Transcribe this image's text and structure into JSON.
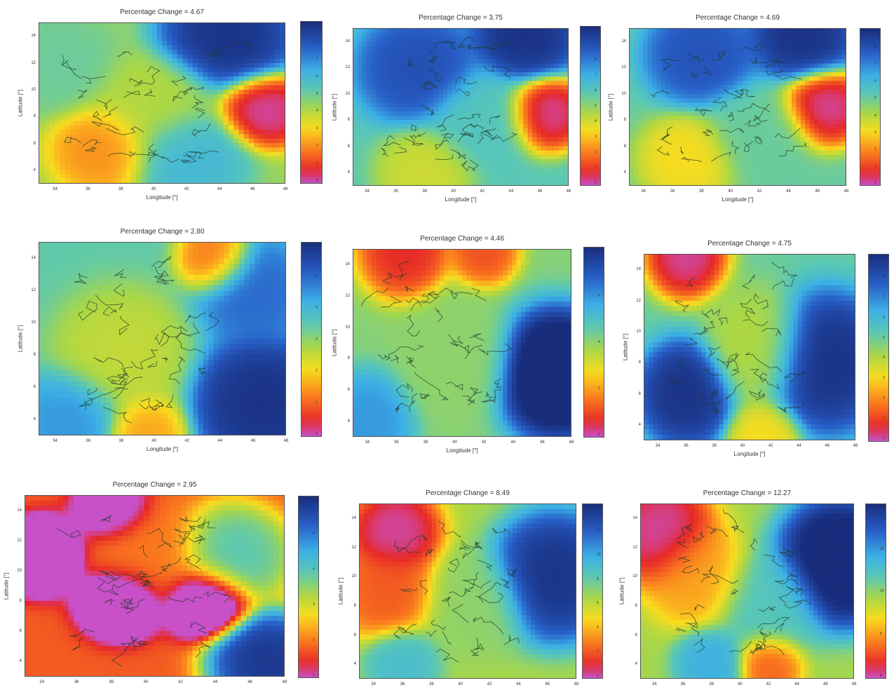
{
  "chart_data": [
    {
      "type": "heatmap",
      "title": "Percentage Change = 4.67",
      "xlabel": "Longitude [°]",
      "ylabel": "Latitude [°]",
      "x_ticks": [
        "34",
        "36",
        "38",
        "40",
        "42",
        "44",
        "46",
        "48"
      ],
      "y_ticks": [
        "4",
        "6",
        "8",
        "10",
        "12",
        "14"
      ],
      "colorbar_ticks": [
        "0",
        "1",
        "2",
        "3",
        "4",
        "5",
        "6",
        "7",
        "8",
        "9"
      ],
      "blobs": [
        {
          "x": 46.8,
          "y": 8.5,
          "v": 0,
          "r": 2.2
        },
        {
          "x": 37,
          "y": 5.5,
          "v": 2,
          "r": 2.6
        },
        {
          "x": 44.5,
          "y": 14,
          "v": 9,
          "r": 3.2
        },
        {
          "x": 40,
          "y": 9,
          "v": 4,
          "r": 3.0
        },
        {
          "x": 34,
          "y": 12,
          "v": 5,
          "r": 3.0
        },
        {
          "x": 42,
          "y": 5,
          "v": 6,
          "r": 3.0
        }
      ]
    },
    {
      "type": "heatmap",
      "title": "Percentage Change = 3.75",
      "xlabel": "Longitude [°]",
      "ylabel": "Latitude [°]",
      "x_ticks": [
        "34",
        "36",
        "38",
        "40",
        "42",
        "44",
        "46",
        "48"
      ],
      "y_ticks": [
        "4",
        "6",
        "8",
        "10",
        "12",
        "14"
      ],
      "colorbar_ticks": [
        "0",
        "1",
        "2",
        "3",
        "4",
        "5",
        "6",
        "7",
        "8",
        "9",
        "10"
      ],
      "blobs": [
        {
          "x": 46.5,
          "y": 8.5,
          "v": 0,
          "r": 2.2
        },
        {
          "x": 37.5,
          "y": 12,
          "v": 9,
          "r": 3.2
        },
        {
          "x": 45,
          "y": 14.5,
          "v": 10,
          "r": 2.8
        },
        {
          "x": 38,
          "y": 4,
          "v": 4,
          "r": 2.6
        },
        {
          "x": 42,
          "y": 8,
          "v": 6,
          "r": 3.0
        }
      ]
    },
    {
      "type": "heatmap",
      "title": "Percentage Change = 4.69",
      "xlabel": "Longitude [°]",
      "ylabel": "Latitude [°]",
      "x_ticks": [
        "34",
        "36",
        "38",
        "40",
        "42",
        "44",
        "46",
        "48"
      ],
      "y_ticks": [
        "4",
        "6",
        "8",
        "10",
        "12",
        "14"
      ],
      "colorbar_ticks": [
        "0",
        "1",
        "2",
        "3",
        "4",
        "5",
        "6",
        "7",
        "8",
        "9"
      ],
      "blobs": [
        {
          "x": 46.5,
          "y": 9,
          "v": 0,
          "r": 2.3
        },
        {
          "x": 38,
          "y": 13,
          "v": 8,
          "r": 3.0
        },
        {
          "x": 45,
          "y": 14.5,
          "v": 9,
          "r": 2.8
        },
        {
          "x": 37,
          "y": 5,
          "v": 3,
          "r": 2.6
        },
        {
          "x": 42,
          "y": 7,
          "v": 5,
          "r": 3.0
        }
      ]
    },
    {
      "type": "heatmap",
      "title": "Percentage Change = 2.80",
      "xlabel": "Longitude [°]",
      "ylabel": "Latitude [°]",
      "x_ticks": [
        "34",
        "36",
        "38",
        "40",
        "42",
        "44",
        "46",
        "48"
      ],
      "y_ticks": [
        "4",
        "6",
        "8",
        "10",
        "12",
        "14"
      ],
      "colorbar_ticks": [
        "0",
        "1",
        "2",
        "3",
        "4",
        "5",
        "6"
      ],
      "blobs": [
        {
          "x": 43.8,
          "y": 14,
          "v": 1,
          "r": 1.8
        },
        {
          "x": 39.5,
          "y": 3,
          "v": 1.5,
          "r": 2.0
        },
        {
          "x": 46.5,
          "y": 5,
          "v": 6,
          "r": 3.2
        },
        {
          "x": 38,
          "y": 8,
          "v": 2.5,
          "r": 3.2
        },
        {
          "x": 35,
          "y": 4,
          "v": 4.5,
          "r": 2.4
        },
        {
          "x": 46,
          "y": 12,
          "v": 5,
          "r": 2.6
        }
      ]
    },
    {
      "type": "heatmap",
      "title": "Percentage Change = 4.46",
      "xlabel": "Longitude [°]",
      "ylabel": "Latitude [°]",
      "x_ticks": [
        "34",
        "36",
        "38",
        "40",
        "42",
        "44",
        "46",
        "48"
      ],
      "y_ticks": [
        "4",
        "6",
        "8",
        "10",
        "12",
        "14"
      ],
      "colorbar_ticks": [
        "0",
        "2",
        "4",
        "6",
        "8"
      ],
      "blobs": [
        {
          "x": 36.5,
          "y": 15,
          "v": 0.5,
          "r": 2.4
        },
        {
          "x": 42,
          "y": 15,
          "v": 1,
          "r": 1.8
        },
        {
          "x": 47,
          "y": 7,
          "v": 9,
          "r": 3.2
        },
        {
          "x": 40,
          "y": 8,
          "v": 4,
          "r": 3.2
        },
        {
          "x": 34,
          "y": 4,
          "v": 6,
          "r": 2.4
        }
      ]
    },
    {
      "type": "heatmap",
      "title": "Percentage Change = 4.75",
      "xlabel": "Longitude [°]",
      "ylabel": "Latitude [°]",
      "x_ticks": [
        "34",
        "36",
        "38",
        "40",
        "42",
        "44",
        "46",
        "48"
      ],
      "y_ticks": [
        "4",
        "6",
        "8",
        "10",
        "12",
        "14"
      ],
      "colorbar_ticks": [
        "0",
        "1",
        "2",
        "3",
        "4",
        "5",
        "6",
        "7",
        "8",
        "9"
      ],
      "blobs": [
        {
          "x": 36,
          "y": 15,
          "v": 0,
          "r": 2.2
        },
        {
          "x": 36,
          "y": 6,
          "v": 9,
          "r": 2.6
        },
        {
          "x": 46,
          "y": 8,
          "v": 9,
          "r": 3.4
        },
        {
          "x": 41,
          "y": 9,
          "v": 4,
          "r": 3.0
        },
        {
          "x": 41.5,
          "y": 3,
          "v": 3,
          "r": 2.0
        }
      ]
    },
    {
      "type": "heatmap",
      "title": "Percentage Change = 2.95",
      "xlabel": "",
      "ylabel": "Latitude [°]",
      "x_ticks": [
        "34",
        "36",
        "38",
        "40",
        "42",
        "44",
        "46",
        "48"
      ],
      "y_ticks": [
        "4",
        "6",
        "8",
        "10",
        "12",
        "14"
      ],
      "colorbar_ticks": [
        "1",
        "2",
        "3",
        "4",
        "5",
        "6"
      ],
      "blobs": [
        {
          "x": 34,
          "y": 11,
          "v": 0,
          "r": 2.0
        },
        {
          "x": 38.5,
          "y": 8,
          "v": 0,
          "r": 2.0
        },
        {
          "x": 43.5,
          "y": 8,
          "v": 0,
          "r": 2.0
        },
        {
          "x": 38,
          "y": 14,
          "v": 0.5,
          "r": 1.8
        },
        {
          "x": 47,
          "y": 4,
          "v": 6,
          "r": 2.6
        },
        {
          "x": 40,
          "y": 11,
          "v": 2,
          "r": 3.0
        },
        {
          "x": 45,
          "y": 11,
          "v": 4,
          "r": 2.6
        }
      ]
    },
    {
      "type": "heatmap",
      "title": "Percentage Change = 8.49",
      "xlabel": "",
      "ylabel": "Latitude [°]",
      "x_ticks": [
        "34",
        "36",
        "38",
        "40",
        "42",
        "44",
        "46",
        "48"
      ],
      "y_ticks": [
        "4",
        "6",
        "8",
        "10",
        "12",
        "14"
      ],
      "colorbar_ticks": [
        "0",
        "2",
        "4",
        "6",
        "8",
        "10",
        "12",
        "14"
      ],
      "blobs": [
        {
          "x": 35.5,
          "y": 13,
          "v": 0,
          "r": 2.4
        },
        {
          "x": 35,
          "y": 9,
          "v": 2,
          "r": 2.6
        },
        {
          "x": 46.5,
          "y": 10,
          "v": 14,
          "r": 3.4
        },
        {
          "x": 41,
          "y": 8,
          "v": 7,
          "r": 3.0
        },
        {
          "x": 36,
          "y": 4,
          "v": 9,
          "r": 2.0
        }
      ]
    },
    {
      "type": "heatmap",
      "title": "Percentage Change = 12.27",
      "xlabel": "",
      "ylabel": "Latitude [°]",
      "x_ticks": [
        "34",
        "36",
        "38",
        "40",
        "42",
        "44",
        "46",
        "48"
      ],
      "y_ticks": [
        "4",
        "6",
        "8",
        "10",
        "12",
        "14"
      ],
      "colorbar_ticks": [
        "0",
        "5",
        "10",
        "15",
        "20"
      ],
      "blobs": [
        {
          "x": 34.5,
          "y": 13,
          "v": 0,
          "r": 2.8
        },
        {
          "x": 37,
          "y": 10,
          "v": 5,
          "r": 2.8
        },
        {
          "x": 47,
          "y": 11,
          "v": 22,
          "r": 3.4
        },
        {
          "x": 42,
          "y": 4,
          "v": 3,
          "r": 1.8
        },
        {
          "x": 42,
          "y": 8,
          "v": 12,
          "r": 3.0
        },
        {
          "x": 38,
          "y": 4,
          "v": 14,
          "r": 2.0
        }
      ]
    }
  ]
}
